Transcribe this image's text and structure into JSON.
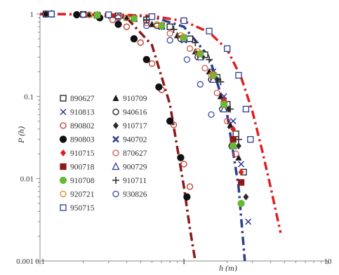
{
  "chart_data": {
    "type": "scatter",
    "title": "",
    "xlabel": "h (m)",
    "ylabel": "P (h)",
    "x_scale": "log",
    "y_scale": "log",
    "xlim": [
      0.1,
      10
    ],
    "ylim": [
      0.001,
      1
    ],
    "x_tick_labels": [
      "0.1",
      "1",
      "10"
    ],
    "y_tick_labels": [
      "1",
      "0.1",
      "0.01",
      "0.001"
    ],
    "grid": false,
    "legend_position": "left, inside plot, two columns",
    "series": [
      {
        "name": "890627",
        "marker": "square-open",
        "color": "#1a1a1a",
        "x": [
          0.11,
          0.2,
          0.35,
          0.55,
          0.8,
          1.1,
          1.4,
          1.7,
          2.0,
          2.3,
          2.6
        ],
        "y": [
          1,
          0.99,
          0.95,
          0.85,
          0.7,
          0.5,
          0.32,
          0.17,
          0.08,
          0.035,
          0.012
        ]
      },
      {
        "name": "910709",
        "marker": "triangle-filled",
        "color": "#1a1a1a",
        "x": [
          0.11,
          0.22,
          0.4,
          0.6,
          0.9,
          1.2,
          1.5,
          1.8,
          2.1,
          2.4
        ],
        "y": [
          1,
          0.98,
          0.9,
          0.75,
          0.55,
          0.35,
          0.2,
          0.1,
          0.045,
          0.018
        ]
      },
      {
        "name": "910813",
        "marker": "x",
        "color": "#27308a",
        "x": [
          0.12,
          0.25,
          0.45,
          0.7,
          1.0,
          1.3,
          1.6,
          1.9,
          2.2,
          2.5,
          2.8
        ],
        "y": [
          1,
          0.97,
          0.88,
          0.72,
          0.52,
          0.33,
          0.2,
          0.1,
          0.05,
          0.015,
          0.003
        ]
      },
      {
        "name": "940616",
        "marker": "circle-open",
        "color": "#1a1a1a",
        "x": [
          0.11,
          0.22,
          0.4,
          0.65,
          0.95,
          1.25,
          1.55,
          1.85,
          2.15
        ],
        "y": [
          1,
          0.98,
          0.9,
          0.72,
          0.5,
          0.3,
          0.16,
          0.07,
          0.025
        ]
      },
      {
        "name": "890802",
        "marker": "circle-open",
        "color": "#c0392b",
        "x": [
          0.11,
          0.18,
          0.25,
          0.32,
          0.4,
          0.5,
          0.6,
          0.7,
          0.85,
          1.0,
          1.1
        ],
        "y": [
          1,
          0.99,
          0.95,
          0.85,
          0.7,
          0.45,
          0.25,
          0.12,
          0.045,
          0.015,
          0.008
        ]
      },
      {
        "name": "910717",
        "marker": "diamond-filled",
        "color": "#2b2b2b",
        "x": [
          0.12,
          0.25,
          0.45,
          0.7,
          1.0,
          1.35,
          1.7,
          2.05,
          2.4,
          2.7
        ],
        "y": [
          1,
          0.97,
          0.87,
          0.7,
          0.5,
          0.3,
          0.16,
          0.07,
          0.025,
          0.006
        ]
      },
      {
        "name": "890803",
        "marker": "circle-filled",
        "color": "#111111",
        "x": [
          0.11,
          0.18,
          0.26,
          0.35,
          0.45,
          0.55,
          0.67,
          0.8,
          0.95,
          1.05
        ],
        "y": [
          1,
          0.98,
          0.9,
          0.75,
          0.5,
          0.28,
          0.13,
          0.05,
          0.018,
          0.006
        ]
      },
      {
        "name": "940702",
        "marker": "x-bold",
        "color": "#2c3e8f",
        "x": [
          0.12,
          0.25,
          0.45,
          0.7,
          1.0,
          1.3,
          1.6,
          1.9,
          2.2,
          2.5
        ],
        "y": [
          1,
          0.97,
          0.88,
          0.7,
          0.48,
          0.3,
          0.17,
          0.08,
          0.03,
          0.009
        ]
      },
      {
        "name": "910715",
        "marker": "diamond-filled",
        "color": "#e02020",
        "x": [
          0.12,
          0.25,
          0.45,
          0.7,
          1.0,
          1.3,
          1.6,
          1.9,
          2.2,
          2.5
        ],
        "y": [
          1,
          0.97,
          0.88,
          0.72,
          0.52,
          0.33,
          0.19,
          0.09,
          0.04,
          0.012
        ]
      },
      {
        "name": "870627",
        "marker": "circle-open",
        "color": "#d9534f",
        "x": [
          0.11,
          0.2,
          0.35,
          0.55,
          0.8,
          1.1,
          1.4,
          1.7,
          2.0,
          2.3
        ],
        "y": [
          1,
          0.98,
          0.92,
          0.78,
          0.58,
          0.38,
          0.22,
          0.11,
          0.05,
          0.02
        ]
      },
      {
        "name": "900718",
        "marker": "square-filled",
        "color": "#8b1a1a",
        "x": [
          0.12,
          0.25,
          0.45,
          0.7,
          1.0,
          1.3,
          1.6,
          1.9,
          2.2,
          2.5
        ],
        "y": [
          1,
          0.97,
          0.88,
          0.72,
          0.5,
          0.32,
          0.18,
          0.08,
          0.03,
          0.009
        ]
      },
      {
        "name": "900729",
        "marker": "triangle-open",
        "color": "#2c3e8f",
        "x": [
          0.12,
          0.25,
          0.45,
          0.7,
          1.0,
          1.3,
          1.6,
          1.9,
          2.2
        ],
        "y": [
          1,
          0.97,
          0.88,
          0.72,
          0.5,
          0.3,
          0.16,
          0.07,
          0.025
        ]
      },
      {
        "name": "910708",
        "marker": "circle-filled",
        "color": "#66bb33",
        "x": [
          0.12,
          0.25,
          0.45,
          0.7,
          1.0,
          1.3,
          1.6,
          1.9,
          2.2,
          2.5
        ],
        "y": [
          1,
          0.97,
          0.88,
          0.72,
          0.52,
          0.33,
          0.18,
          0.08,
          0.025,
          0.005
        ]
      },
      {
        "name": "910711",
        "marker": "plus",
        "color": "#2b2b2b",
        "x": [
          0.12,
          0.3,
          0.55,
          0.85,
          1.2,
          1.5,
          1.8,
          2.1,
          2.4
        ],
        "y": [
          1,
          0.96,
          0.85,
          0.65,
          0.45,
          0.28,
          0.15,
          0.07,
          0.03
        ]
      },
      {
        "name": "920721",
        "marker": "circle-open",
        "color": "#e67e22",
        "x": [
          0.12,
          0.22,
          0.4,
          0.65,
          0.95,
          1.25,
          1.55
        ],
        "y": [
          1,
          0.98,
          0.9,
          0.75,
          0.55,
          0.35,
          0.18
        ]
      },
      {
        "name": "930826",
        "marker": "circle-open",
        "color": "#3b4aa0",
        "x": [
          0.11,
          0.2,
          0.35,
          0.55,
          0.8,
          1.05,
          1.3,
          1.55
        ],
        "y": [
          1,
          0.98,
          0.9,
          0.72,
          0.48,
          0.28,
          0.14,
          0.06
        ]
      },
      {
        "name": "950715",
        "marker": "square-open",
        "color": "#2c3e8f",
        "x": [
          0.12,
          0.3,
          0.6,
          1.0,
          1.5,
          2.0,
          2.4,
          2.7,
          2.9
        ],
        "y": [
          1,
          0.98,
          0.93,
          0.83,
          0.62,
          0.38,
          0.18,
          0.07,
          0.03
        ]
      }
    ],
    "fit_curves": [
      {
        "color": "#8b1a1a",
        "dash": "12 5 3 5",
        "x": [
          0.1,
          0.2,
          0.4,
          0.6,
          0.8,
          1.0,
          1.1,
          1.2
        ],
        "y": [
          1,
          0.99,
          0.9,
          0.42,
          0.08,
          0.008,
          0.0025,
          0.001
        ]
      },
      {
        "color": "#2c3e8f",
        "dash": "12 5 3 5",
        "x": [
          0.1,
          0.3,
          0.6,
          1.0,
          1.5,
          2.0,
          2.4,
          2.65
        ],
        "y": [
          1,
          0.99,
          0.93,
          0.7,
          0.3,
          0.06,
          0.008,
          0.001
        ]
      },
      {
        "color": "#e02020",
        "dash": "12 5 3 5",
        "x": [
          0.1,
          0.3,
          0.6,
          1.0,
          1.5,
          2.0,
          2.5,
          3.0,
          3.5,
          4.0,
          4.7
        ],
        "y": [
          1,
          0.99,
          0.95,
          0.82,
          0.6,
          0.37,
          0.17,
          0.065,
          0.022,
          0.008,
          0.0022
        ]
      }
    ]
  }
}
